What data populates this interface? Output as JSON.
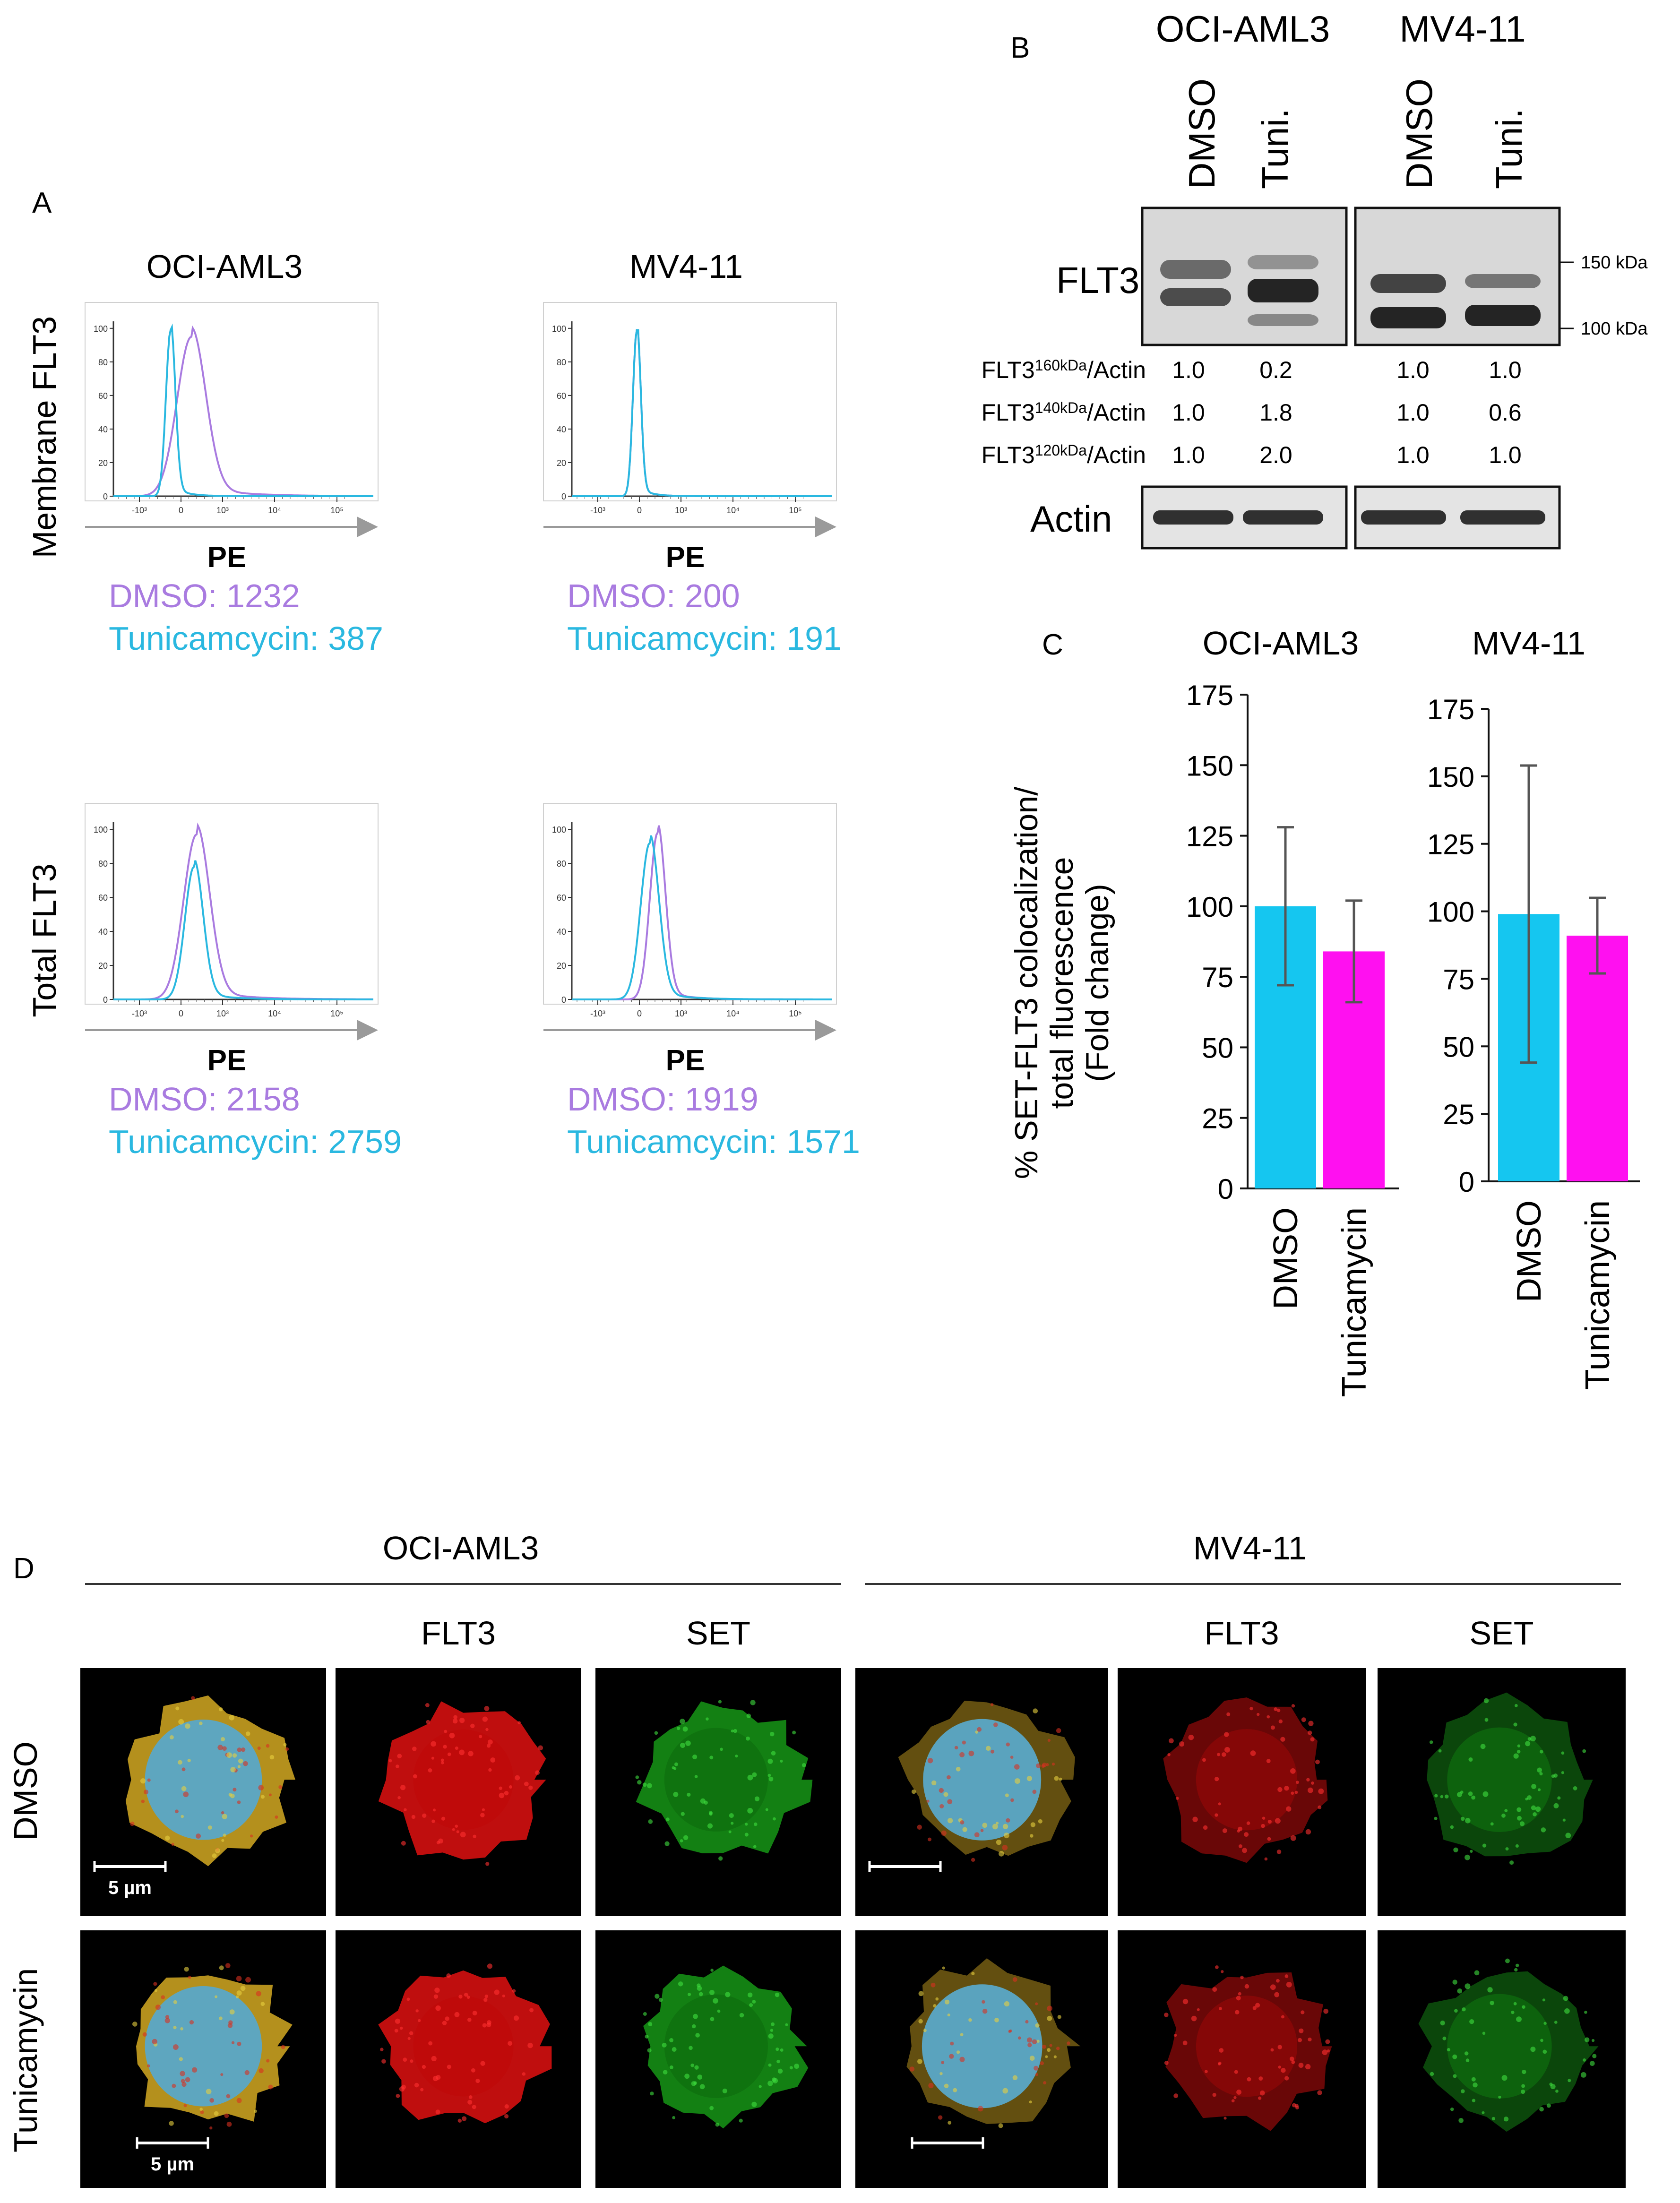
{
  "colors": {
    "dmso": "#a97be0",
    "tunicamycin": "#2ab8e0",
    "bar_dmso": "#15c6f0",
    "bar_tunicamycin": "#ff10f0",
    "text": "#1a1a1a"
  },
  "panel_a": {
    "letter": "A",
    "columns": [
      "OCI-AML3",
      "MV4-11"
    ],
    "row_labels": [
      "Membrane FLT3",
      "Total FLT3"
    ],
    "x_label": "PE",
    "x_ticks": [
      "-10³",
      "0",
      "10³",
      "10⁴",
      "10⁵"
    ],
    "y_ticks": [
      "0",
      "20",
      "40",
      "60",
      "80",
      "100"
    ],
    "plots": [
      {
        "dmso_label": "DMSO: 1232",
        "tuni_label": "Tunicamcycin: 387",
        "dmso_peak": 0.3,
        "dmso_width": 0.055,
        "tuni_peak": 0.22,
        "tuni_width": 0.018,
        "dmso_max": 95,
        "tuni_max": 99
      },
      {
        "dmso_label": "DMSO: 200",
        "tuni_label": "Tunicamcycin: 191",
        "dmso_peak": 0.25,
        "dmso_width": 0.015,
        "tuni_peak": 0.25,
        "tuni_width": 0.015,
        "dmso_max": 99,
        "tuni_max": 99
      },
      {
        "dmso_label": "DMSO: 2158",
        "tuni_label": "Tunicamcycin: 2759",
        "dmso_peak": 0.32,
        "dmso_width": 0.05,
        "tuni_peak": 0.31,
        "tuni_width": 0.035,
        "dmso_max": 97,
        "tuni_max": 78
      },
      {
        "dmso_label": "DMSO: 1919",
        "tuni_label": "Tunicamcycin: 1571",
        "dmso_peak": 0.33,
        "dmso_width": 0.03,
        "tuni_peak": 0.3,
        "tuni_width": 0.035,
        "dmso_max": 98,
        "tuni_max": 92
      }
    ]
  },
  "panel_b": {
    "letter": "B",
    "cell_lines": [
      "OCI-AML3",
      "MV4-11"
    ],
    "lanes": [
      "DMSO",
      "Tuni.",
      "DMSO",
      "Tuni."
    ],
    "flt3_label": "FLT3",
    "actin_label": "Actin",
    "markers": [
      "150 kDa",
      "100 kDa"
    ],
    "ratio_rows": [
      {
        "prefix": "FLT3",
        "sup": "160kDa",
        "suffix": "/Actin",
        "values": [
          "1.0",
          "0.2",
          "1.0",
          "1.0"
        ]
      },
      {
        "prefix": "FLT3",
        "sup": "140kDa",
        "suffix": "/Actin",
        "values": [
          "1.0",
          "1.8",
          "1.0",
          "0.6"
        ]
      },
      {
        "prefix": "FLT3",
        "sup": "120kDa",
        "suffix": "/Actin",
        "values": [
          "1.0",
          "2.0",
          "1.0",
          "1.0"
        ]
      }
    ]
  },
  "panel_c": {
    "letter": "C",
    "y_label_lines": [
      "% SET-FLT3  colocalization/",
      "total fluorescence",
      "(Fold change)"
    ],
    "chart_data": [
      {
        "type": "bar",
        "title": "OCI-AML3",
        "categories": [
          "DMSO",
          "Tunicamycin"
        ],
        "values": [
          100,
          84
        ],
        "error": [
          28,
          18
        ],
        "ylim": [
          0,
          175
        ],
        "yticks": [
          0,
          25,
          50,
          75,
          100,
          125,
          150,
          175
        ]
      },
      {
        "type": "bar",
        "title": "MV4-11",
        "categories": [
          "DMSO",
          "Tunicamycin"
        ],
        "values": [
          99,
          91
        ],
        "error": [
          55,
          14
        ],
        "ylim": [
          0,
          175
        ],
        "yticks": [
          0,
          25,
          50,
          75,
          100,
          125,
          150,
          175
        ]
      }
    ]
  },
  "panel_d": {
    "letter": "D",
    "groups": [
      "OCI-AML3",
      "MV4-11"
    ],
    "channel_labels": [
      "FLT3",
      "SET",
      "FLT3",
      "SET"
    ],
    "row_labels": [
      "DMSO",
      "Tunicamycin"
    ],
    "scale_bar": "5 µm"
  }
}
